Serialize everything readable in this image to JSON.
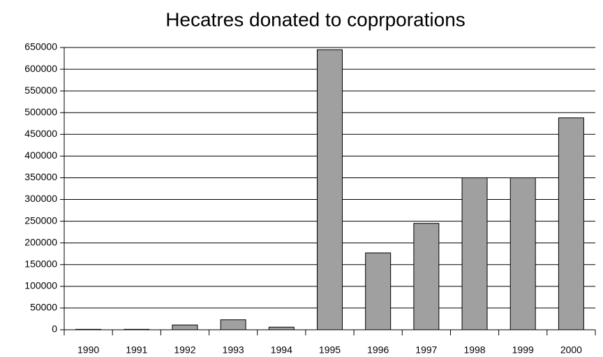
{
  "chart_data": {
    "type": "bar",
    "title": "Hecatres donated to coprporations",
    "categories": [
      "1990",
      "1991",
      "1992",
      "1993",
      "1994",
      "1995",
      "1996",
      "1997",
      "1998",
      "1999",
      "2000"
    ],
    "values": [
      1000,
      1000,
      11000,
      23000,
      6000,
      645000,
      177000,
      245000,
      350000,
      350000,
      488000
    ],
    "color": "#a0a0a0",
    "ylim": [
      0,
      650000
    ],
    "yticks": [
      0,
      50000,
      100000,
      150000,
      200000,
      250000,
      300000,
      350000,
      400000,
      450000,
      500000,
      550000,
      600000,
      650000
    ],
    "grid": true
  }
}
